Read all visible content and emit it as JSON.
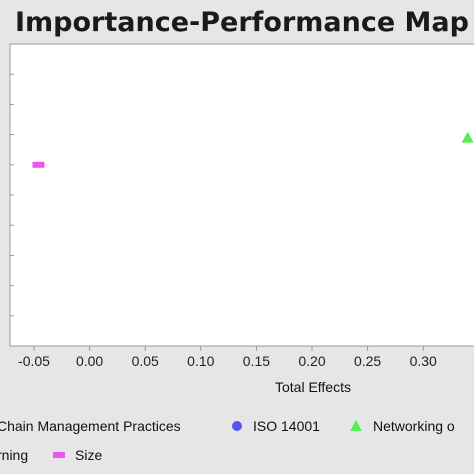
{
  "chart_data": {
    "type": "scatter",
    "title": "Importance-Performance Map",
    "xlabel": "Total Effects",
    "ylabel": "",
    "x_ticks": [
      "-0.05",
      "0.00",
      "0.05",
      "0.10",
      "0.15",
      "0.20",
      "0.25",
      "0.30",
      "0"
    ],
    "xlim": [
      -0.06,
      0.34
    ],
    "ylim": [
      0,
      10
    ],
    "series": [
      {
        "name": "Chain Management Practices",
        "marker": "none",
        "color": "#000000",
        "points": []
      },
      {
        "name": "ISO 14001",
        "marker": "circle",
        "color": "#5555ee",
        "points": []
      },
      {
        "name": "Networking o",
        "marker": "triangle",
        "color": "#55ee55",
        "points": [
          {
            "x": 0.34,
            "y": 6.9
          }
        ]
      },
      {
        "name": "rning",
        "marker": "none",
        "color": "#000000",
        "points": []
      },
      {
        "name": "Size",
        "marker": "square",
        "color": "#ee55ee",
        "points": [
          {
            "x": -0.046,
            "y": 6.0
          }
        ]
      }
    ],
    "legend_position": "bottom",
    "grid": false
  }
}
